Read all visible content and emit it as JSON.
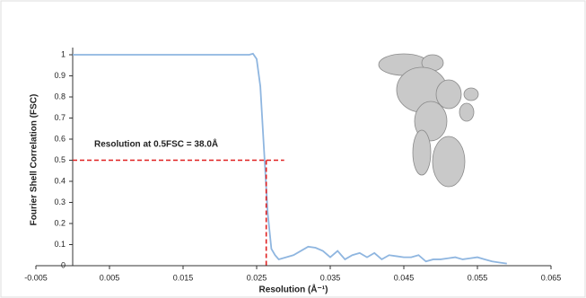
{
  "chart_data": {
    "type": "line",
    "x_label": "Resolution (Å⁻¹)",
    "y_label": "Fourier Shell Correlation (FSC)",
    "annotation": "Resolution at 0.5FSC = 38.0Å",
    "threshold": {
      "x": 0.0263,
      "y": 0.5,
      "color": "#e02020"
    },
    "color": "#8fb6e0",
    "x": [
      0,
      0.005,
      0.01,
      0.015,
      0.02,
      0.023,
      0.024,
      0.0245,
      0.025,
      0.0255,
      0.026,
      0.0265,
      0.027,
      0.0275,
      0.028,
      0.029,
      0.03,
      0.031,
      0.032,
      0.033,
      0.034,
      0.035,
      0.036,
      0.037,
      0.038,
      0.039,
      0.04,
      0.041,
      0.042,
      0.043,
      0.044,
      0.045,
      0.046,
      0.047,
      0.048,
      0.049,
      0.05,
      0.051,
      0.052,
      0.053,
      0.054,
      0.055,
      0.056,
      0.057,
      0.058,
      0.059
    ],
    "values": [
      1,
      1,
      1,
      1,
      1,
      1,
      1,
      1.005,
      0.98,
      0.85,
      0.55,
      0.25,
      0.08,
      0.05,
      0.03,
      0.04,
      0.05,
      0.07,
      0.09,
      0.085,
      0.07,
      0.04,
      0.07,
      0.03,
      0.05,
      0.06,
      0.04,
      0.06,
      0.03,
      0.05,
      0.045,
      0.04,
      0.04,
      0.05,
      0.02,
      0.03,
      0.03,
      0.035,
      0.04,
      0.03,
      0.035,
      0.04,
      0.03,
      0.02,
      0.015,
      0.01
    ],
    "xlim": [
      -0.005,
      0.065
    ],
    "xticks": [
      -0.005,
      0.005,
      0.015,
      0.025,
      0.035,
      0.045,
      0.055,
      0.065
    ],
    "ylim": [
      0,
      1
    ],
    "yticks": [
      0,
      0.1,
      0.2,
      0.3,
      0.4,
      0.5,
      0.6,
      0.7,
      0.8,
      0.9,
      1
    ]
  }
}
